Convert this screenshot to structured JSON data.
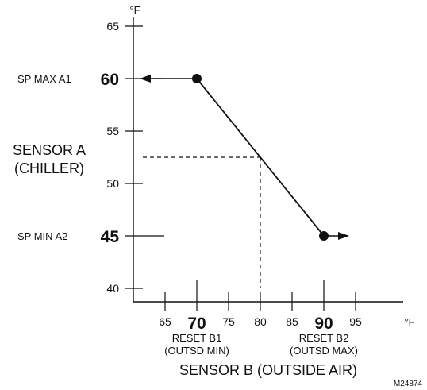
{
  "chart_data": {
    "type": "line",
    "x_unit": "°F",
    "y_unit": "°F",
    "xlim": [
      60,
      97
    ],
    "ylim": [
      38,
      66
    ],
    "x_ticks": [
      65,
      75,
      80,
      85,
      95
    ],
    "y_ticks": [
      40,
      50,
      55,
      65
    ],
    "highlight_x": [
      {
        "value": 70,
        "label": "70"
      },
      {
        "value": 90,
        "label": "90"
      }
    ],
    "highlight_y": [
      {
        "value": 60,
        "label": "60",
        "name": "SP MAX A1"
      },
      {
        "value": 45,
        "label": "45",
        "name": "SP MIN A2"
      }
    ],
    "series": [
      {
        "points": [
          {
            "x": 70,
            "y": 60
          },
          {
            "x": 90,
            "y": 45
          }
        ],
        "color": "#111111"
      }
    ],
    "arrows": [
      {
        "from": {
          "x": 70,
          "y": 60
        },
        "to": {
          "x": 61,
          "y": 60
        }
      },
      {
        "from": {
          "x": 90,
          "y": 45
        },
        "to": {
          "x": 94,
          "y": 45
        }
      }
    ],
    "example_reading": {
      "x": 80,
      "y": 52.5
    },
    "ylabel": [
      "SENSOR A",
      "(CHILLER)"
    ],
    "xlabel": "SENSOR B (OUTSIDE AIR)",
    "reset_labels": [
      {
        "x": 70,
        "lines": [
          "RESET B1",
          "(OUTSD MIN)"
        ]
      },
      {
        "x": 90,
        "lines": [
          "RESET B2",
          "(OUTSD MAX)"
        ]
      }
    ],
    "figure_id": "M24874"
  }
}
